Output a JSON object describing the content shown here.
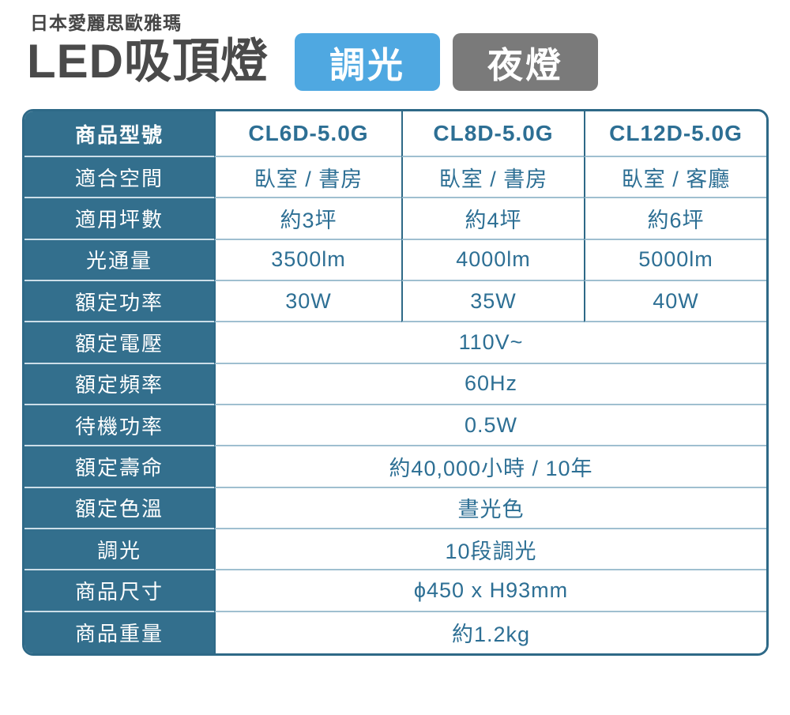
{
  "header": {
    "brand": "日本愛麗思歐雅瑪",
    "title": "LED吸頂燈",
    "badges": [
      {
        "label": "調光",
        "color": "#4fa8e1"
      },
      {
        "label": "夜燈",
        "color": "#7a7a7a"
      }
    ]
  },
  "colors": {
    "label_background": "#336f8d",
    "table_border": "#2e6987",
    "value_text": "#2d6f94",
    "label_text": "#ffffff",
    "label_separator": "#ccdee8",
    "value_separator": "#9fbfd0",
    "title_text": "#4a4a4a"
  },
  "table": {
    "rows": [
      {
        "label": "商品型號",
        "values": [
          "CL6D-5.0G",
          "CL8D-5.0G",
          "CL12D-5.0G"
        ]
      },
      {
        "label": "適合空間",
        "values": [
          "臥室 / 書房",
          "臥室 / 書房",
          "臥室 / 客廳"
        ]
      },
      {
        "label": "適用坪數",
        "values": [
          "約3坪",
          "約4坪",
          "約6坪"
        ]
      },
      {
        "label": "光通量",
        "values": [
          "3500lm",
          "4000lm",
          "5000lm"
        ]
      },
      {
        "label": "額定功率",
        "values": [
          "30W",
          "35W",
          "40W"
        ]
      },
      {
        "label": "額定電壓",
        "merged": "110V~"
      },
      {
        "label": "額定頻率",
        "merged": "60Hz"
      },
      {
        "label": "待機功率",
        "merged": "0.5W"
      },
      {
        "label": "額定壽命",
        "merged": "約40,000小時 / 10年"
      },
      {
        "label": "額定色溫",
        "merged": "晝光色"
      },
      {
        "label": "調光",
        "merged": "10段調光"
      },
      {
        "label": "商品尺寸",
        "merged": "ϕ450 x H93mm"
      },
      {
        "label": "商品重量",
        "merged": "約1.2kg"
      }
    ]
  }
}
